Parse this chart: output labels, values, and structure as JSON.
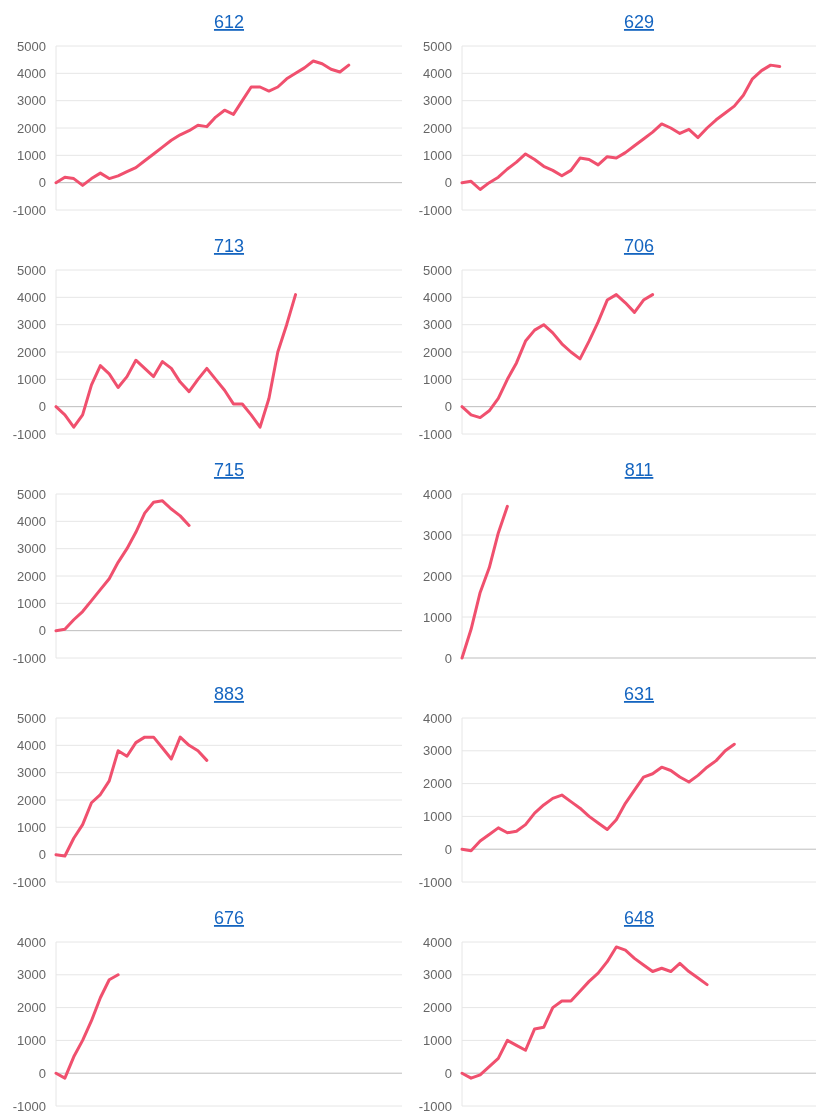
{
  "chart_data": [
    {
      "type": "line",
      "title": "612",
      "categories": [
        null,
        null,
        null,
        null,
        null,
        null,
        null,
        null,
        null,
        null,
        null,
        null,
        null,
        null,
        null,
        null,
        null,
        null,
        null,
        null,
        null,
        null,
        null,
        null,
        null,
        null,
        null,
        null,
        null,
        null,
        null,
        null,
        null,
        null,
        null,
        null,
        null,
        null,
        null,
        null
      ],
      "series": [
        {
          "color": "#f0506e",
          "values": [
            0,
            200,
            150,
            -100,
            150,
            350,
            150,
            250,
            400,
            550,
            800,
            1050,
            1300,
            1550,
            1750,
            1900,
            2100,
            2050,
            2400,
            2650,
            2500,
            3000,
            3500,
            3500,
            3350,
            3500,
            3800,
            4000,
            4200,
            4450,
            4350,
            4150,
            4050,
            4300,
            null,
            null,
            null,
            null,
            null,
            null
          ]
        }
      ],
      "ylim": [
        -1000,
        5000
      ],
      "yticks": [
        -1000,
        0,
        1000,
        2000,
        3000,
        4000,
        5000
      ],
      "grid": "y",
      "tick_labels": "y"
    },
    {
      "type": "line",
      "title": "629",
      "categories": [
        null,
        null,
        null,
        null,
        null,
        null,
        null,
        null,
        null,
        null,
        null,
        null,
        null,
        null,
        null,
        null,
        null,
        null,
        null,
        null,
        null,
        null,
        null,
        null,
        null,
        null,
        null,
        null,
        null,
        null,
        null,
        null,
        null,
        null,
        null,
        null,
        null,
        null,
        null,
        null
      ],
      "series": [
        {
          "color": "#f0506e",
          "values": [
            0,
            50,
            -250,
            0,
            200,
            500,
            750,
            1050,
            850,
            600,
            450,
            250,
            450,
            900,
            850,
            650,
            950,
            900,
            1100,
            1350,
            1600,
            1850,
            2150,
            2000,
            1800,
            1950,
            1650,
            2000,
            2300,
            2550,
            2800,
            3200,
            3800,
            4100,
            4300,
            4250,
            null,
            null,
            null,
            null
          ]
        }
      ],
      "ylim": [
        -1000,
        5000
      ],
      "yticks": [
        -1000,
        0,
        1000,
        2000,
        3000,
        4000,
        5000
      ],
      "grid": "y",
      "tick_labels": "y"
    },
    {
      "type": "line",
      "title": "713",
      "categories": [
        null,
        null,
        null,
        null,
        null,
        null,
        null,
        null,
        null,
        null,
        null,
        null,
        null,
        null,
        null,
        null,
        null,
        null,
        null,
        null,
        null,
        null,
        null,
        null,
        null,
        null,
        null,
        null,
        null,
        null,
        null,
        null,
        null,
        null,
        null,
        null,
        null,
        null,
        null,
        null
      ],
      "series": [
        {
          "color": "#f0506e",
          "values": [
            0,
            -300,
            -750,
            -300,
            800,
            1500,
            1200,
            700,
            1100,
            1700,
            1400,
            1100,
            1650,
            1400,
            900,
            550,
            1000,
            1400,
            1000,
            600,
            100,
            100,
            -300,
            -750,
            300,
            2000,
            3000,
            4100,
            null,
            null,
            null,
            null,
            null,
            null,
            null,
            null,
            null,
            null,
            null,
            null
          ]
        }
      ],
      "ylim": [
        -1000,
        5000
      ],
      "yticks": [
        -1000,
        0,
        1000,
        2000,
        3000,
        4000,
        5000
      ],
      "grid": "y",
      "tick_labels": "y"
    },
    {
      "type": "line",
      "title": "706",
      "categories": [
        null,
        null,
        null,
        null,
        null,
        null,
        null,
        null,
        null,
        null,
        null,
        null,
        null,
        null,
        null,
        null,
        null,
        null,
        null,
        null,
        null,
        null,
        null,
        null,
        null,
        null,
        null,
        null,
        null,
        null,
        null,
        null,
        null,
        null,
        null,
        null,
        null,
        null,
        null,
        null
      ],
      "series": [
        {
          "color": "#f0506e",
          "values": [
            0,
            -300,
            -400,
            -150,
            300,
            1000,
            1600,
            2400,
            2800,
            3000,
            2700,
            2300,
            2000,
            1750,
            2400,
            3100,
            3900,
            4100,
            3800,
            3450,
            3900,
            4100,
            null,
            null,
            null,
            null,
            null,
            null,
            null,
            null,
            null,
            null,
            null,
            null,
            null,
            null,
            null,
            null,
            null,
            null
          ]
        }
      ],
      "ylim": [
        -1000,
        5000
      ],
      "yticks": [
        -1000,
        0,
        1000,
        2000,
        3000,
        4000,
        5000
      ],
      "grid": "y",
      "tick_labels": "y"
    },
    {
      "type": "line",
      "title": "715",
      "categories": [
        null,
        null,
        null,
        null,
        null,
        null,
        null,
        null,
        null,
        null,
        null,
        null,
        null,
        null,
        null,
        null,
        null,
        null,
        null,
        null,
        null,
        null,
        null,
        null,
        null,
        null,
        null,
        null,
        null,
        null,
        null,
        null,
        null,
        null,
        null,
        null,
        null,
        null,
        null,
        null
      ],
      "series": [
        {
          "color": "#f0506e",
          "values": [
            0,
            50,
            400,
            700,
            1100,
            1500,
            1900,
            2500,
            3000,
            3600,
            4300,
            4700,
            4750,
            4450,
            4200,
            3850,
            null,
            null,
            null,
            null,
            null,
            null,
            null,
            null,
            null,
            null,
            null,
            null,
            null,
            null,
            null,
            null,
            null,
            null,
            null,
            null,
            null,
            null,
            null,
            null
          ]
        }
      ],
      "ylim": [
        -1000,
        5000
      ],
      "yticks": [
        -1000,
        0,
        1000,
        2000,
        3000,
        4000,
        5000
      ],
      "grid": "y",
      "tick_labels": "y"
    },
    {
      "type": "line",
      "title": "811",
      "categories": [
        null,
        null,
        null,
        null,
        null,
        null,
        null,
        null,
        null,
        null,
        null,
        null,
        null,
        null,
        null,
        null,
        null,
        null,
        null,
        null,
        null,
        null,
        null,
        null,
        null,
        null,
        null,
        null,
        null,
        null,
        null,
        null,
        null,
        null,
        null,
        null,
        null,
        null,
        null,
        null
      ],
      "series": [
        {
          "color": "#f0506e",
          "values": [
            0,
            700,
            1600,
            2200,
            3050,
            3700,
            null,
            null,
            null,
            null,
            null,
            null,
            null,
            null,
            null,
            null,
            null,
            null,
            null,
            null,
            null,
            null,
            null,
            null,
            null,
            null,
            null,
            null,
            null,
            null,
            null,
            null,
            null,
            null,
            null,
            null,
            null,
            null,
            null,
            null
          ]
        }
      ],
      "ylim": [
        0,
        4000
      ],
      "yticks": [
        0,
        1000,
        2000,
        3000,
        4000
      ],
      "grid": "y",
      "tick_labels": "y"
    },
    {
      "type": "line",
      "title": "883",
      "categories": [
        null,
        null,
        null,
        null,
        null,
        null,
        null,
        null,
        null,
        null,
        null,
        null,
        null,
        null,
        null,
        null,
        null,
        null,
        null,
        null,
        null,
        null,
        null,
        null,
        null,
        null,
        null,
        null,
        null,
        null,
        null,
        null,
        null,
        null,
        null,
        null,
        null,
        null,
        null,
        null
      ],
      "series": [
        {
          "color": "#f0506e",
          "values": [
            0,
            -50,
            600,
            1100,
            1900,
            2200,
            2700,
            3800,
            3600,
            4100,
            4300,
            4300,
            3900,
            3500,
            4300,
            4000,
            3800,
            3450,
            null,
            null,
            null,
            null,
            null,
            null,
            null,
            null,
            null,
            null,
            null,
            null,
            null,
            null,
            null,
            null,
            null,
            null,
            null,
            null,
            null,
            null
          ]
        }
      ],
      "ylim": [
        -1000,
        5000
      ],
      "yticks": [
        -1000,
        0,
        1000,
        2000,
        3000,
        4000,
        5000
      ],
      "grid": "y",
      "tick_labels": "y"
    },
    {
      "type": "line",
      "title": "631",
      "categories": [
        null,
        null,
        null,
        null,
        null,
        null,
        null,
        null,
        null,
        null,
        null,
        null,
        null,
        null,
        null,
        null,
        null,
        null,
        null,
        null,
        null,
        null,
        null,
        null,
        null,
        null,
        null,
        null,
        null,
        null,
        null,
        null,
        null,
        null,
        null,
        null,
        null,
        null,
        null,
        null
      ],
      "series": [
        {
          "color": "#f0506e",
          "values": [
            0,
            -50,
            250,
            450,
            650,
            500,
            550,
            750,
            1100,
            1350,
            1550,
            1650,
            1450,
            1250,
            1000,
            800,
            600,
            900,
            1400,
            1800,
            2200,
            2300,
            2500,
            2400,
            2200,
            2050,
            2250,
            2500,
            2700,
            3000,
            3200,
            null,
            null,
            null,
            null,
            null,
            null,
            null,
            null,
            null
          ]
        }
      ],
      "ylim": [
        -1000,
        4000
      ],
      "yticks": [
        -1000,
        0,
        1000,
        2000,
        3000,
        4000
      ],
      "grid": "y",
      "tick_labels": "y"
    },
    {
      "type": "line",
      "title": "676",
      "categories": [
        null,
        null,
        null,
        null,
        null,
        null,
        null,
        null,
        null,
        null,
        null,
        null,
        null,
        null,
        null,
        null,
        null,
        null,
        null,
        null,
        null,
        null,
        null,
        null,
        null,
        null,
        null,
        null,
        null,
        null,
        null,
        null,
        null,
        null,
        null,
        null,
        null,
        null,
        null,
        null
      ],
      "series": [
        {
          "color": "#f0506e",
          "values": [
            0,
            -150,
            500,
            1000,
            1600,
            2300,
            2850,
            3000,
            null,
            null,
            null,
            null,
            null,
            null,
            null,
            null,
            null,
            null,
            null,
            null,
            null,
            null,
            null,
            null,
            null,
            null,
            null,
            null,
            null,
            null,
            null,
            null,
            null,
            null,
            null,
            null,
            null,
            null,
            null,
            null
          ]
        }
      ],
      "ylim": [
        -1000,
        4000
      ],
      "yticks": [
        -1000,
        0,
        1000,
        2000,
        3000,
        4000
      ],
      "grid": "y",
      "tick_labels": "y"
    },
    {
      "type": "line",
      "title": "648",
      "categories": [
        null,
        null,
        null,
        null,
        null,
        null,
        null,
        null,
        null,
        null,
        null,
        null,
        null,
        null,
        null,
        null,
        null,
        null,
        null,
        null,
        null,
        null,
        null,
        null,
        null,
        null,
        null,
        null,
        null,
        null,
        null,
        null,
        null,
        null,
        null,
        null,
        null,
        null,
        null,
        null
      ],
      "series": [
        {
          "color": "#f0506e",
          "values": [
            0,
            -150,
            -50,
            200,
            450,
            1000,
            850,
            700,
            1350,
            1400,
            2000,
            2200,
            2200,
            2500,
            2800,
            3050,
            3400,
            3850,
            3750,
            3500,
            3300,
            3100,
            3200,
            3100,
            3350,
            3100,
            2900,
            2700,
            null,
            null,
            null,
            null,
            null,
            null,
            null,
            null,
            null,
            null,
            null,
            null
          ]
        }
      ],
      "ylim": [
        -1000,
        4000
      ],
      "yticks": [
        -1000,
        0,
        1000,
        2000,
        3000,
        4000
      ],
      "grid": "y",
      "tick_labels": "y"
    }
  ]
}
